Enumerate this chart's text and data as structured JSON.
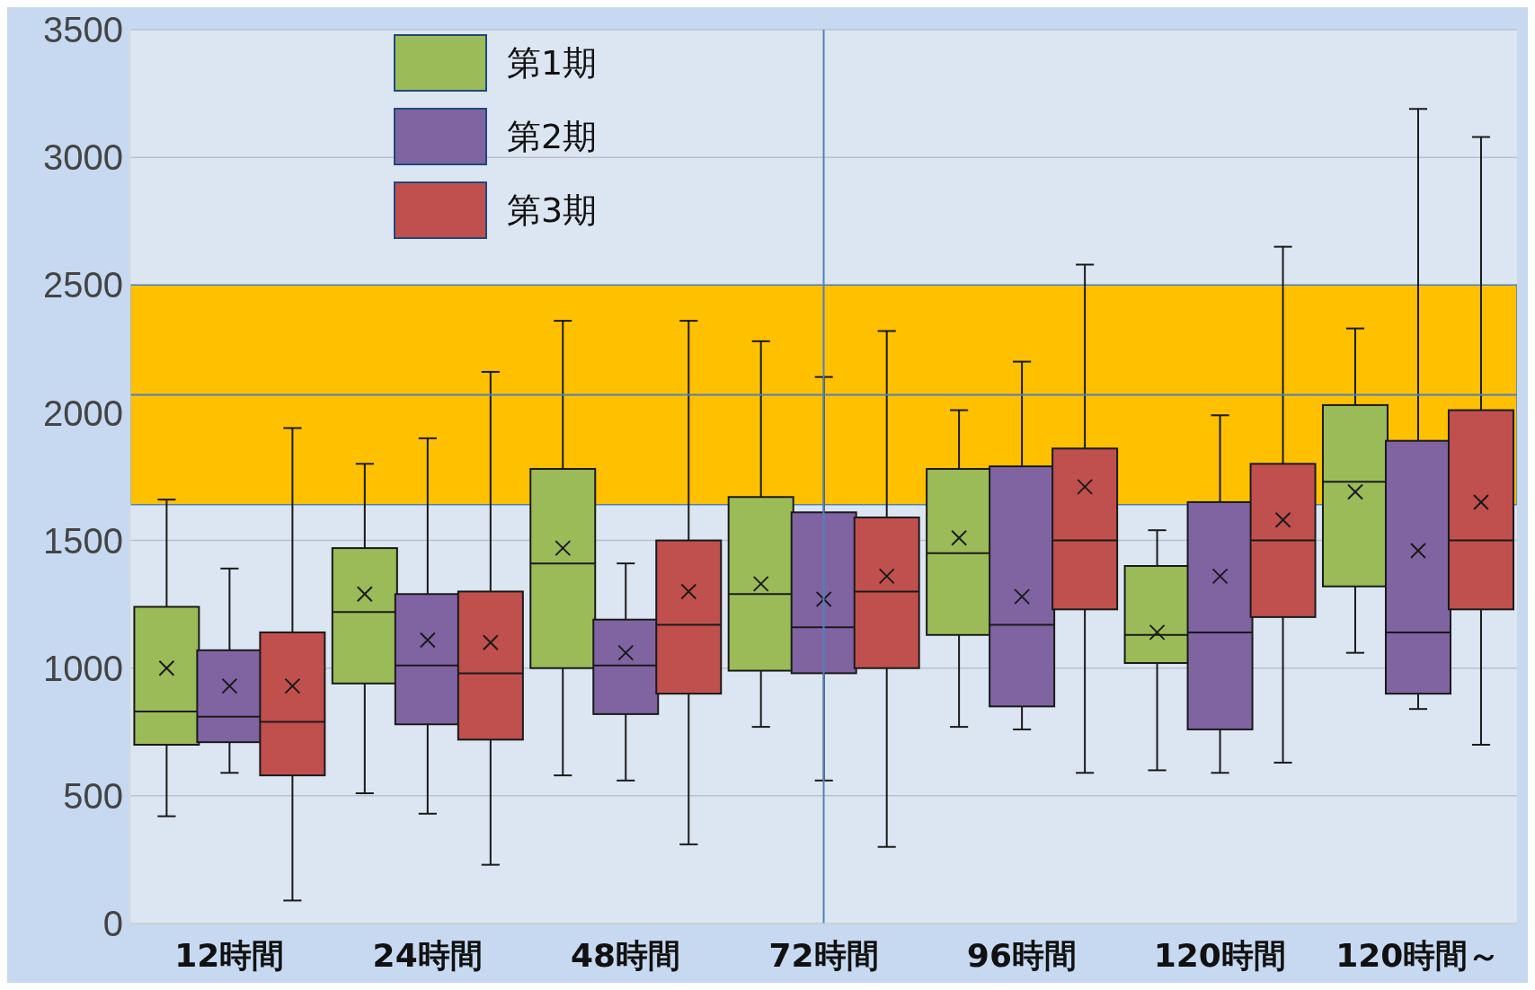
{
  "chart_data": {
    "type": "box",
    "categories": [
      "12時間",
      "24時間",
      "48時間",
      "72時間",
      "96時間",
      "120時間",
      "120時間～"
    ],
    "ylim": [
      0,
      3500
    ],
    "yticks": [
      0,
      500,
      1000,
      1500,
      2000,
      2500,
      3000,
      3500
    ],
    "grid": "y",
    "legend": "top left",
    "series": [
      {
        "name": "第1期",
        "color": "#9bbb59",
        "boxes": [
          {
            "low": 420,
            "q1": 700,
            "median": 830,
            "q3": 1240,
            "high": 1660,
            "mean": 1000
          },
          {
            "low": 510,
            "q1": 940,
            "median": 1220,
            "q3": 1470,
            "high": 1800,
            "mean": 1290
          },
          {
            "low": 580,
            "q1": 1000,
            "median": 1410,
            "q3": 1780,
            "high": 2360,
            "mean": 1470
          },
          {
            "low": 770,
            "q1": 990,
            "median": 1290,
            "q3": 1670,
            "high": 2280,
            "mean": 1330
          },
          {
            "low": 770,
            "q1": 1130,
            "median": 1450,
            "q3": 1780,
            "high": 2010,
            "mean": 1510
          },
          {
            "low": 600,
            "q1": 1020,
            "median": 1130,
            "q3": 1400,
            "high": 1540,
            "mean": 1140
          },
          {
            "low": 1060,
            "q1": 1320,
            "median": 1730,
            "q3": 2030,
            "high": 2330,
            "mean": 1690
          }
        ]
      },
      {
        "name": "第2期",
        "color": "#8064a2",
        "boxes": [
          {
            "low": 590,
            "q1": 710,
            "median": 810,
            "q3": 1070,
            "high": 1390,
            "mean": 930
          },
          {
            "low": 430,
            "q1": 780,
            "median": 1010,
            "q3": 1290,
            "high": 1900,
            "mean": 1110
          },
          {
            "low": 560,
            "q1": 820,
            "median": 1010,
            "q3": 1190,
            "high": 1410,
            "mean": 1060
          },
          {
            "low": 560,
            "q1": 980,
            "median": 1160,
            "q3": 1610,
            "high": 2140,
            "mean": 1270
          },
          {
            "low": 760,
            "q1": 850,
            "median": 1170,
            "q3": 1790,
            "high": 2200,
            "mean": 1280
          },
          {
            "low": 590,
            "q1": 760,
            "median": 1140,
            "q3": 1650,
            "high": 1990,
            "mean": 1360
          },
          {
            "low": 840,
            "q1": 900,
            "median": 1140,
            "q3": 1890,
            "high": 3190,
            "mean": 1460
          }
        ]
      },
      {
        "name": "第3期",
        "color": "#c0504d",
        "boxes": [
          {
            "low": 90,
            "q1": 580,
            "median": 790,
            "q3": 1140,
            "high": 1940,
            "mean": 930
          },
          {
            "low": 230,
            "q1": 720,
            "median": 980,
            "q3": 1300,
            "high": 2160,
            "mean": 1100
          },
          {
            "low": 310,
            "q1": 900,
            "median": 1170,
            "q3": 1500,
            "high": 2360,
            "mean": 1300
          },
          {
            "low": 300,
            "q1": 1000,
            "median": 1300,
            "q3": 1590,
            "high": 2320,
            "mean": 1360
          },
          {
            "low": 590,
            "q1": 1230,
            "median": 1500,
            "q3": 1860,
            "high": 2580,
            "mean": 1710
          },
          {
            "low": 630,
            "q1": 1200,
            "median": 1500,
            "q3": 1800,
            "high": 2650,
            "mean": 1580
          },
          {
            "low": 700,
            "q1": 1230,
            "median": 1500,
            "q3": 2010,
            "high": 3080,
            "mean": 1650
          }
        ]
      }
    ],
    "bands": [
      {
        "axis": "y",
        "from": 1640,
        "to": 2500,
        "color": "#ffc000"
      }
    ],
    "ref_lines": [
      {
        "axis": "y",
        "value": 2070,
        "color": "#4f81bd"
      },
      {
        "axis": "x",
        "value": "72時間",
        "color": "#4f81bd"
      }
    ]
  }
}
